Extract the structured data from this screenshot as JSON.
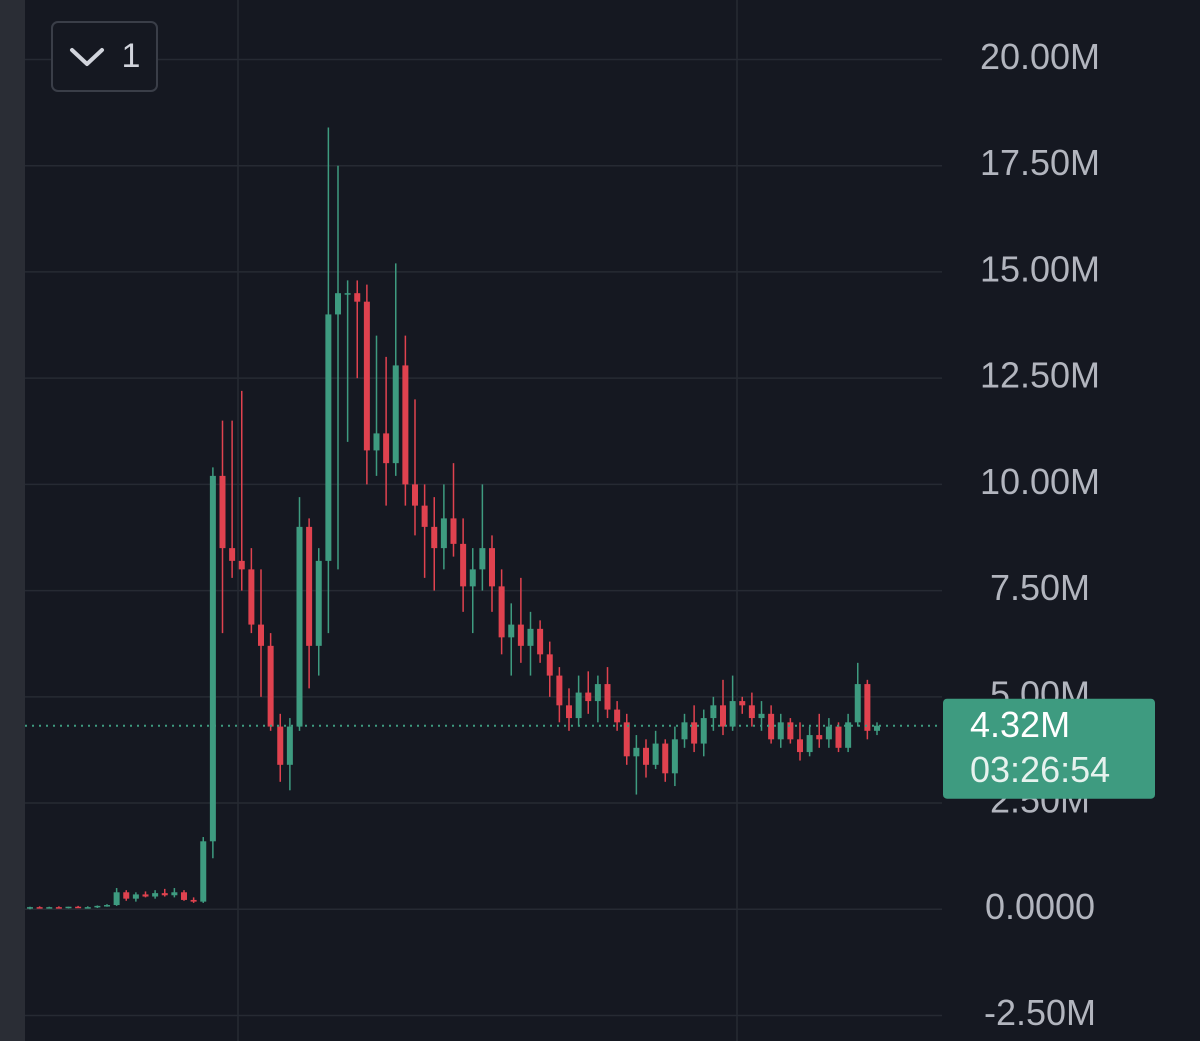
{
  "chart_data": {
    "type": "candlestick",
    "interval_label": "1",
    "open": [
      30000,
      50000,
      40000,
      50000,
      30000,
      60000,
      40000,
      50000,
      80000,
      100000,
      400000,
      250000,
      350000,
      300000,
      380000,
      330000,
      400000,
      220000,
      180000,
      1600000,
      10200000,
      8500000,
      8200000,
      8000000,
      6700000,
      6200000,
      4300000,
      3400000,
      4300000,
      9000000,
      6200000,
      8200000,
      14000000,
      14500000,
      14500000,
      14300000,
      10800000,
      11200000,
      10500000,
      12800000,
      10000000,
      9500000,
      9000000,
      8500000,
      9200000,
      8600000,
      7600000,
      8000000,
      8500000,
      7600000,
      6400000,
      6700000,
      6200000,
      6600000,
      6000000,
      5500000,
      4800000,
      4500000,
      5100000,
      4900000,
      5300000,
      4700000,
      4400000,
      3600000,
      3800000,
      3400000,
      3900000,
      3200000,
      4000000,
      4400000,
      3900000,
      4500000,
      4800000,
      4300000,
      4900000,
      4800000,
      4500000,
      4600000,
      4000000,
      4400000,
      4000000,
      3700000,
      4100000,
      4000000,
      4300000,
      3800000,
      4400000,
      5300000,
      4200000
    ],
    "high": [
      60000,
      70000,
      60000,
      70000,
      60000,
      80000,
      70000,
      90000,
      120000,
      500000,
      450000,
      400000,
      420000,
      450000,
      480000,
      500000,
      450000,
      280000,
      1700000,
      10400000,
      11500000,
      11500000,
      12200000,
      8500000,
      8000000,
      6500000,
      4600000,
      4500000,
      9700000,
      9200000,
      8500000,
      18400000,
      17500000,
      14800000,
      14800000,
      14700000,
      13500000,
      13000000,
      15200000,
      13500000,
      12000000,
      10000000,
      9700000,
      10000000,
      10500000,
      9200000,
      8500000,
      10000000,
      8800000,
      8000000,
      7200000,
      7800000,
      7000000,
      6800000,
      6300000,
      5700000,
      5200000,
      5500000,
      5600000,
      5500000,
      5700000,
      4900000,
      4600000,
      4100000,
      4000000,
      4200000,
      4000000,
      4300000,
      4600000,
      4800000,
      4700000,
      5000000,
      5400000,
      5500000,
      5000000,
      5100000,
      4900000,
      4800000,
      4600000,
      4500000,
      4400000,
      4300000,
      4600000,
      4500000,
      4400000,
      4600000,
      5800000,
      5400000,
      4400000
    ],
    "low": [
      0,
      20000,
      20000,
      30000,
      20000,
      30000,
      20000,
      30000,
      60000,
      80000,
      200000,
      180000,
      280000,
      250000,
      300000,
      280000,
      200000,
      150000,
      150000,
      1200000,
      6500000,
      7800000,
      7500000,
      6500000,
      5000000,
      4200000,
      3000000,
      2800000,
      4200000,
      5200000,
      5500000,
      6500000,
      8000000,
      11000000,
      12500000,
      10000000,
      10200000,
      9500000,
      10200000,
      9500000,
      8800000,
      7800000,
      7500000,
      8000000,
      8300000,
      7000000,
      6500000,
      7500000,
      7000000,
      6000000,
      5500000,
      5800000,
      5500000,
      5800000,
      5000000,
      4400000,
      4200000,
      4300000,
      4600000,
      4400000,
      4500000,
      4200000,
      3400000,
      2700000,
      3100000,
      3300000,
      3000000,
      2900000,
      3800000,
      3700000,
      3600000,
      4200000,
      4100000,
      4200000,
      4600000,
      4300000,
      4200000,
      3900000,
      3800000,
      3900000,
      3500000,
      3600000,
      3800000,
      3800000,
      3700000,
      3700000,
      4300000,
      4000000,
      4100000
    ],
    "close": [
      50000,
      40000,
      50000,
      30000,
      60000,
      40000,
      50000,
      80000,
      100000,
      400000,
      250000,
      350000,
      300000,
      380000,
      330000,
      400000,
      220000,
      180000,
      1600000,
      10200000,
      8500000,
      8200000,
      8000000,
      6700000,
      6200000,
      4300000,
      3400000,
      4300000,
      9000000,
      6200000,
      8200000,
      14000000,
      14500000,
      14500000,
      14300000,
      10800000,
      11200000,
      10500000,
      12800000,
      10000000,
      9500000,
      9000000,
      8500000,
      9200000,
      8600000,
      7600000,
      8000000,
      8500000,
      7600000,
      6400000,
      6700000,
      6200000,
      6600000,
      6000000,
      5500000,
      4800000,
      4500000,
      5100000,
      4900000,
      5300000,
      4700000,
      4400000,
      3600000,
      3800000,
      3400000,
      3900000,
      3200000,
      4000000,
      4400000,
      3900000,
      4500000,
      4800000,
      4300000,
      4900000,
      4800000,
      4500000,
      4600000,
      4000000,
      4400000,
      4000000,
      3700000,
      4100000,
      4000000,
      4300000,
      3800000,
      4400000,
      5300000,
      4200000,
      4320000
    ],
    "up_color": "#3e9b80",
    "down_color": "#e0424f",
    "ylim": [
      -3100000,
      21400000
    ],
    "yticks": [
      {
        "value": -2500000,
        "label": "-2.50M"
      },
      {
        "value": 0,
        "label": "0.0000"
      },
      {
        "value": 2500000,
        "label": "2.50M"
      },
      {
        "value": 5000000,
        "label": "5.00M"
      },
      {
        "value": 7500000,
        "label": "7.50M"
      },
      {
        "value": 10000000,
        "label": "10.00M"
      },
      {
        "value": 12500000,
        "label": "12.50M"
      },
      {
        "value": 15000000,
        "label": "15.00M"
      },
      {
        "value": 17500000,
        "label": "17.50M"
      },
      {
        "value": 20000000,
        "label": "20.00M"
      }
    ],
    "grid": true,
    "current_price": 4320000,
    "current_price_label": "4.32M",
    "countdown": "03:26:54"
  }
}
